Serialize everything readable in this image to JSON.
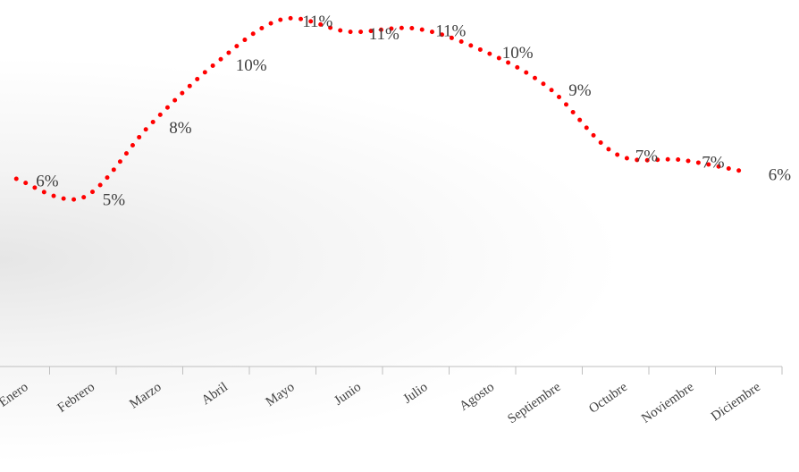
{
  "chart_data": {
    "type": "line",
    "categories": [
      "Enero",
      "Febrero",
      "Marzo",
      "Abril",
      "Mayo",
      "Junio",
      "Julio",
      "Agosto",
      "Septiembre",
      "Octubre",
      "Noviembre",
      "Diciembre"
    ],
    "series": [
      {
        "color": "#ff0000",
        "values": [
          6.0,
          5.4,
          7.7,
          9.7,
          11.1,
          10.7,
          10.8,
          10.1,
          8.9,
          6.8,
          6.6,
          6.2
        ],
        "value_labels": [
          "6%",
          "5%",
          "8%",
          "10%",
          "11%",
          "11%",
          "11%",
          "10%",
          "9%",
          "7%",
          "7%",
          "6%"
        ]
      }
    ],
    "ylim": [
      0,
      12
    ]
  }
}
